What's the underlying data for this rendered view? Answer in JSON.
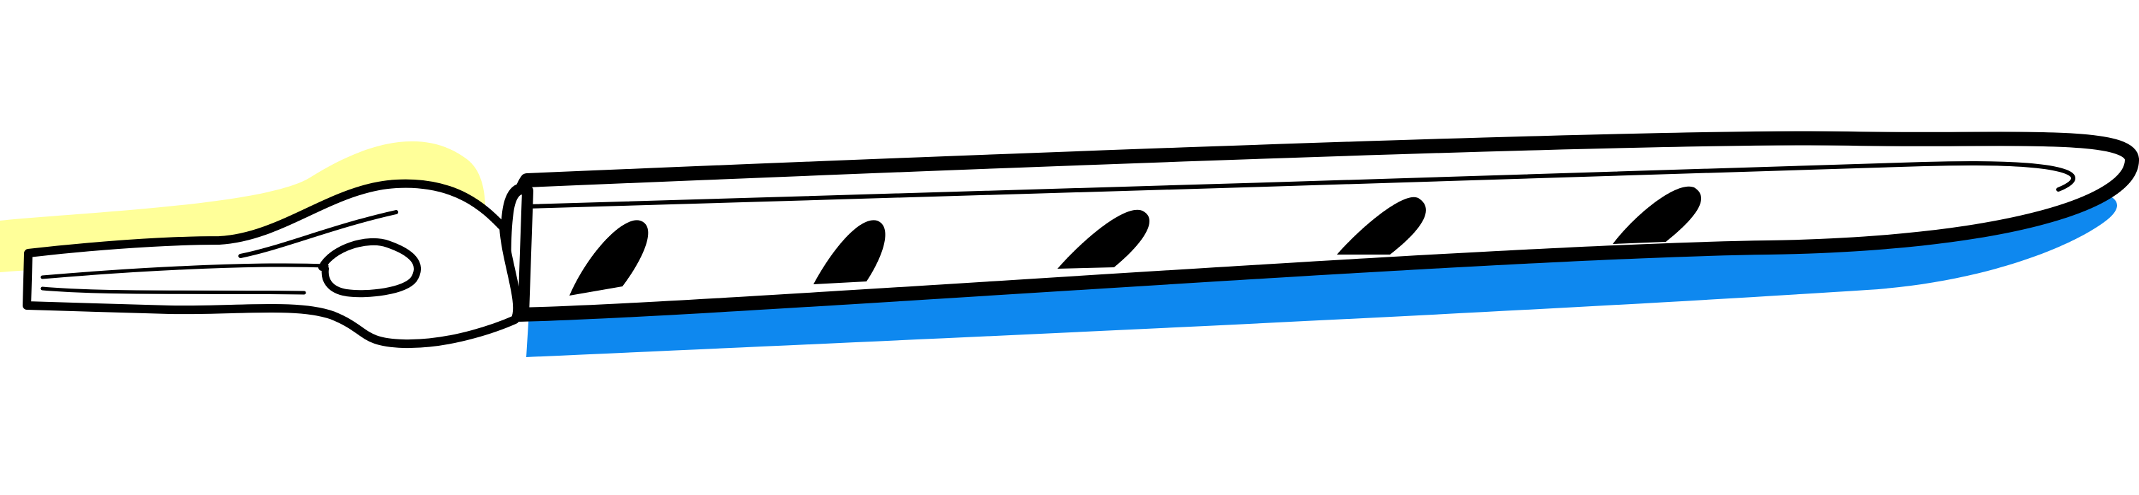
{
  "illustration": {
    "subject": "",
    "colors": {
      "background": "#FFFFFF",
      "outline": "#000000",
      "pale_yellow": "#FFFF99",
      "pink": "#F7AEE6",
      "blue": "#0E88EF",
      "lime": "#F4FC66",
      "lavender": "#BA89E0",
      "violet": "#7300FF",
      "gold": "#FFCD00"
    },
    "swatches": [
      {
        "name": "lime-triangle",
        "color": "#F4FC66"
      },
      {
        "name": "lavender-triangle",
        "color": "#BA89E0"
      },
      {
        "name": "violet-triangle",
        "color": "#7300FF"
      },
      {
        "name": "gold-triangle",
        "color": "#FFCD00"
      }
    ]
  }
}
